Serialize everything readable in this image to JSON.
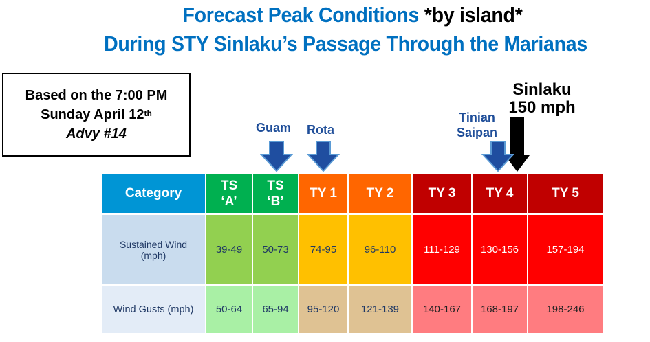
{
  "title": {
    "line1_main": "Forecast Peak Conditions ",
    "line1_emph": "*by island*",
    "line2": "During STY Sinlaku’s Passage Through the Marianas"
  },
  "info_box": {
    "line1": "Based on the 7:00 PM",
    "line2_main": "Sunday April 12",
    "line2_sup": "th",
    "line3": "Advy #14"
  },
  "markers": {
    "guam": "Guam",
    "rota": "Rota",
    "tinian": "Tinian",
    "saipan": "Saipan",
    "storm_name": "Sinlaku",
    "storm_speed": "150 mph"
  },
  "table": {
    "header_label": "Category",
    "categories": [
      {
        "line1": "TS",
        "line2": "‘A’",
        "header_color": "#00b050",
        "sustained_color": "#92d050",
        "gust_color": "#a9f0a5"
      },
      {
        "line1": "TS",
        "line2": "‘B’",
        "header_color": "#00b050",
        "sustained_color": "#92d050",
        "gust_color": "#a9f0a5"
      },
      {
        "line1": "TY 1",
        "line2": "",
        "header_color": "#ff6600",
        "sustained_color": "#ffc000",
        "gust_color": "#dfc293"
      },
      {
        "line1": "TY 2",
        "line2": "",
        "header_color": "#ff6600",
        "sustained_color": "#ffc000",
        "gust_color": "#dfc293"
      },
      {
        "line1": "TY 3",
        "line2": "",
        "header_color": "#c00000",
        "sustained_color": "#ff0000",
        "gust_color": "#ff7c80"
      },
      {
        "line1": "TY 4",
        "line2": "",
        "header_color": "#c00000",
        "sustained_color": "#ff0000",
        "gust_color": "#ff7c80"
      },
      {
        "line1": "TY 5",
        "line2": "",
        "header_color": "#c00000",
        "sustained_color": "#ff0000",
        "gust_color": "#ff7c80"
      }
    ],
    "rows": [
      {
        "label": "Sustained Wind (mph)",
        "values": [
          "39-49",
          "50-73",
          "74-95",
          "96-110",
          "111-129",
          "130-156",
          "157-194"
        ]
      },
      {
        "label": "Wind Gusts (mph)",
        "values": [
          "50-64",
          "65-94",
          "95-120",
          "121-139",
          "140-167",
          "168-197",
          "198-246"
        ]
      }
    ]
  },
  "colors": {
    "title_blue": "#0070c0",
    "header_blue": "#0095d5",
    "row1_label_bg": "#c9dcee",
    "row2_label_bg": "#e3ecf7",
    "marker_blue": "#1f4e99"
  }
}
